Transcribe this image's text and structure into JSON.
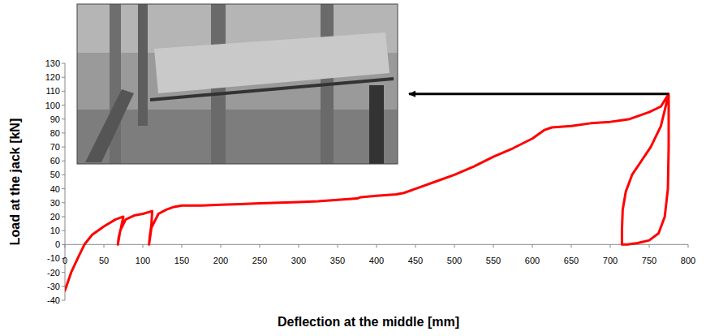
{
  "chart_data": {
    "type": "line",
    "x_label": "Deflection at the middle [mm]",
    "y_label": "Load at the jack [kN]",
    "color": "#ff0000",
    "grid": false,
    "xlim": [
      0,
      800
    ],
    "xticks": [
      0,
      50,
      100,
      150,
      200,
      250,
      300,
      350,
      400,
      450,
      500,
      550,
      600,
      650,
      700,
      750,
      800
    ],
    "ylim": [
      -40,
      130
    ],
    "yticks": [
      -40,
      -30,
      -20,
      -10,
      0,
      10,
      20,
      30,
      40,
      50,
      60,
      70,
      80,
      90,
      100,
      110,
      120,
      130
    ],
    "x": [
      0,
      8,
      18,
      25,
      35,
      50,
      65,
      75,
      72,
      69,
      68,
      71,
      78,
      90,
      100,
      112,
      111,
      109,
      108,
      111,
      120,
      130,
      140,
      150,
      175,
      200,
      225,
      250,
      275,
      300,
      325,
      350,
      375,
      380,
      400,
      425,
      435,
      450,
      475,
      500,
      525,
      550,
      575,
      600,
      615,
      625,
      650,
      675,
      700,
      725,
      750,
      765,
      775,
      775,
      774,
      770,
      762,
      750,
      735,
      722,
      715,
      715,
      716,
      720,
      728,
      740,
      752,
      765,
      775
    ],
    "values": [
      -33,
      -20,
      -8,
      0,
      7,
      13,
      18,
      20,
      12,
      5,
      0,
      10,
      18,
      21,
      22,
      24,
      14,
      6,
      0,
      12,
      22,
      25,
      27,
      28,
      28,
      28.5,
      29,
      29.5,
      30,
      30.5,
      31,
      32,
      33,
      34,
      35,
      36,
      37,
      40,
      45,
      50,
      56,
      63,
      69,
      76,
      82,
      84,
      85,
      87,
      88,
      90,
      95,
      99,
      108,
      70,
      40,
      20,
      8,
      3,
      1,
      0,
      0,
      10,
      25,
      38,
      50,
      60,
      70,
      85,
      108
    ]
  }
}
